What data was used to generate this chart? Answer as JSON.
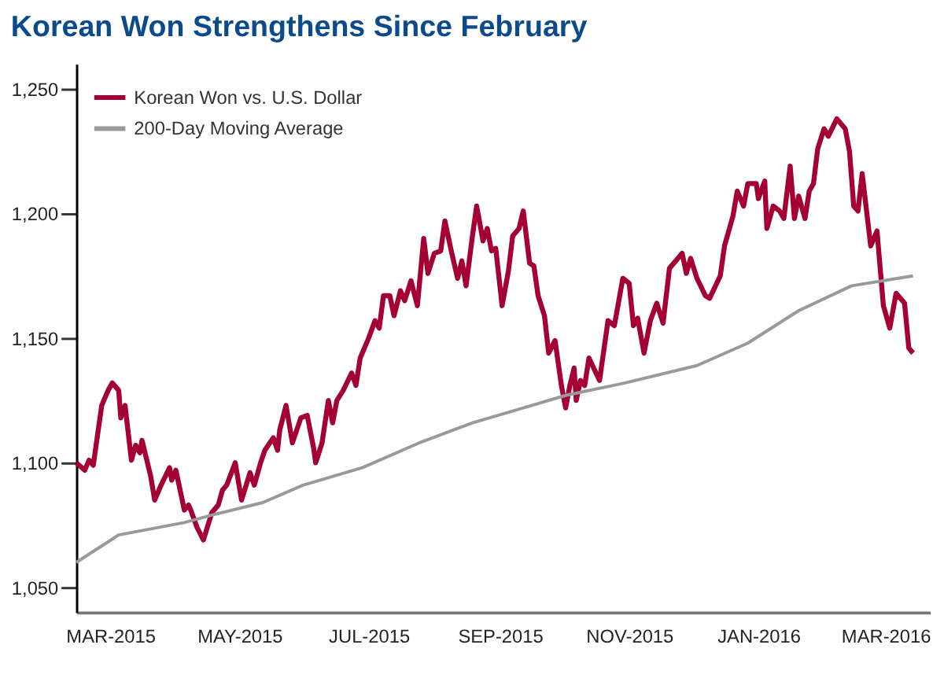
{
  "chart_data": {
    "type": "line",
    "title": "Korean Won Strengthens Since February",
    "xlim": [
      "2015-02-13",
      "2016-03-22"
    ],
    "xticks": [
      {
        "value": "2015-03-01",
        "label": "MAR-2015"
      },
      {
        "value": "2015-05-01",
        "label": "MAY-2015"
      },
      {
        "value": "2015-07-01",
        "label": "JUL-2015"
      },
      {
        "value": "2015-09-01",
        "label": "SEP-2015"
      },
      {
        "value": "2015-11-01",
        "label": "NOV-2015"
      },
      {
        "value": "2016-01-01",
        "label": "JAN-2016"
      },
      {
        "value": "2016-03-01",
        "label": "MAR-2016"
      }
    ],
    "ylim": [
      1040,
      1260
    ],
    "yticks": [
      {
        "value": 1050,
        "label": "1,050"
      },
      {
        "value": 1100,
        "label": "1,100"
      },
      {
        "value": 1150,
        "label": "1,150"
      },
      {
        "value": 1200,
        "label": "1,200"
      },
      {
        "value": 1250,
        "label": "1,250"
      }
    ],
    "grid": false,
    "legend": "top left",
    "series": [
      {
        "name": "Korean Won vs. U.S. Dollar",
        "color": "#a50034",
        "x": [
          "2015-02-13",
          "2015-02-17",
          "2015-02-19",
          "2015-02-21",
          "2015-02-25",
          "2015-02-28",
          "2015-03-02",
          "2015-03-05",
          "2015-03-06",
          "2015-03-08",
          "2015-03-11",
          "2015-03-13",
          "2015-03-15",
          "2015-03-16",
          "2015-03-20",
          "2015-03-22",
          "2015-03-25",
          "2015-03-29",
          "2015-03-30",
          "2015-04-01",
          "2015-04-05",
          "2015-04-07",
          "2015-04-08",
          "2015-04-11",
          "2015-04-14",
          "2015-04-18",
          "2015-04-21",
          "2015-04-23",
          "2015-04-25",
          "2015-04-29",
          "2015-05-02",
          "2015-05-06",
          "2015-05-08",
          "2015-05-11",
          "2015-05-13",
          "2015-05-17",
          "2015-05-19",
          "2015-05-20",
          "2015-05-23",
          "2015-05-26",
          "2015-05-30",
          "2015-06-02",
          "2015-06-05",
          "2015-06-06",
          "2015-06-09",
          "2015-06-12",
          "2015-06-14",
          "2015-06-16",
          "2015-06-19",
          "2015-06-23",
          "2015-06-25",
          "2015-06-27",
          "2015-07-01",
          "2015-07-04",
          "2015-07-06",
          "2015-07-08",
          "2015-07-11",
          "2015-07-13",
          "2015-07-16",
          "2015-07-18",
          "2015-07-21",
          "2015-07-24",
          "2015-07-27",
          "2015-07-29",
          "2015-08-01",
          "2015-08-04",
          "2015-08-06",
          "2015-08-09",
          "2015-08-12",
          "2015-08-14",
          "2015-08-16",
          "2015-08-19",
          "2015-08-21",
          "2015-08-24",
          "2015-08-26",
          "2015-08-28",
          "2015-08-30",
          "2015-09-02",
          "2015-09-05",
          "2015-09-07",
          "2015-09-10",
          "2015-09-12",
          "2015-09-15",
          "2015-09-17",
          "2015-09-19",
          "2015-09-22",
          "2015-09-24",
          "2015-09-27",
          "2015-09-30",
          "2015-10-02",
          "2015-10-04",
          "2015-10-06",
          "2015-10-07",
          "2015-10-09",
          "2015-10-11",
          "2015-10-13",
          "2015-10-18",
          "2015-10-22",
          "2015-10-25",
          "2015-10-29",
          "2015-11-01",
          "2015-11-03",
          "2015-11-05",
          "2015-11-08",
          "2015-11-11",
          "2015-11-14",
          "2015-11-17",
          "2015-11-20",
          "2015-11-23",
          "2015-11-26",
          "2015-11-28",
          "2015-11-30",
          "2015-12-03",
          "2015-12-07",
          "2015-12-09",
          "2015-12-14",
          "2015-12-16",
          "2015-12-20",
          "2015-12-22",
          "2015-12-25",
          "2015-12-27",
          "2015-12-31",
          "2016-01-01",
          "2016-01-04",
          "2016-01-05",
          "2016-01-08",
          "2016-01-11",
          "2016-01-13",
          "2016-01-16",
          "2016-01-18",
          "2016-01-20",
          "2016-01-23",
          "2016-01-25",
          "2016-01-27",
          "2016-01-29",
          "2016-02-01",
          "2016-02-03",
          "2016-02-07",
          "2016-02-11",
          "2016-02-13",
          "2016-02-15",
          "2016-02-17",
          "2016-02-19",
          "2016-02-23",
          "2016-02-26",
          "2016-02-29",
          "2016-03-03",
          "2016-03-06",
          "2016-03-10",
          "2016-03-12",
          "2016-03-14"
        ],
        "values": [
          1100,
          1097,
          1101,
          1099,
          1123,
          1129,
          1132,
          1129,
          1118,
          1123,
          1101,
          1107,
          1104,
          1109,
          1095,
          1085,
          1091,
          1098,
          1093,
          1097,
          1081,
          1083,
          1081,
          1074,
          1069,
          1080,
          1083,
          1089,
          1091,
          1100,
          1085,
          1096,
          1091,
          1100,
          1105,
          1110,
          1105,
          1113,
          1123,
          1108,
          1118,
          1119,
          1106,
          1100,
          1108,
          1125,
          1116,
          1125,
          1129,
          1136,
          1131,
          1142,
          1150,
          1157,
          1154,
          1167,
          1167,
          1159,
          1169,
          1165,
          1173,
          1163,
          1190,
          1176,
          1184,
          1185,
          1197,
          1185,
          1174,
          1181,
          1171,
          1191,
          1203,
          1189,
          1194,
          1185,
          1186,
          1163,
          1177,
          1191,
          1194,
          1201,
          1180,
          1179,
          1167,
          1159,
          1144,
          1149,
          1131,
          1122,
          1131,
          1138,
          1125,
          1133,
          1131,
          1142,
          1133,
          1157,
          1155,
          1174,
          1172,
          1155,
          1158,
          1144,
          1157,
          1164,
          1156,
          1178,
          1181,
          1184,
          1176,
          1182,
          1174,
          1167,
          1166,
          1175,
          1187,
          1199,
          1209,
          1203,
          1212,
          1212,
          1206,
          1213,
          1194,
          1203,
          1201,
          1198,
          1219,
          1198,
          1207,
          1198,
          1209,
          1212,
          1226,
          1234,
          1231,
          1238,
          1234,
          1225,
          1203,
          1201,
          1216,
          1187,
          1193,
          1163,
          1154,
          1168,
          1164,
          1146,
          1144
        ]
      },
      {
        "name": "200-Day Moving Average",
        "color": "#999999",
        "x": [
          "2015-02-13",
          "2015-03-05",
          "2015-04-05",
          "2015-04-18",
          "2015-05-12",
          "2015-05-31",
          "2015-06-28",
          "2015-07-25",
          "2015-08-19",
          "2015-09-12",
          "2015-10-02",
          "2015-10-30",
          "2015-12-03",
          "2015-12-27",
          "2016-01-20",
          "2016-02-14",
          "2016-03-14"
        ],
        "values": [
          1060,
          1071,
          1076,
          1079,
          1084,
          1091,
          1098,
          1108,
          1116,
          1122,
          1127,
          1132,
          1139,
          1148,
          1161,
          1171,
          1175
        ]
      }
    ]
  }
}
